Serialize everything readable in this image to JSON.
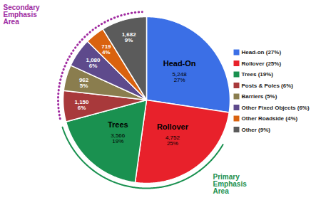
{
  "chart_data": {
    "type": "pie",
    "categories": [
      "Head-on (27%)",
      "Rollover (25%)",
      "Trees (19%)",
      "Posts & Poles (6%)",
      "Barriers (5%)",
      "Other Fixed Objects (6%)",
      "Other Roadside (4%)",
      "Other (9%)"
    ],
    "values": [
      5248,
      4752,
      3566,
      1150,
      962,
      1080,
      719,
      1682
    ],
    "value_labels": [
      "5,248",
      "4,752",
      "3,566",
      "1,150",
      "962",
      "1,080",
      "719",
      "1,682"
    ],
    "percent_labels": [
      "27%",
      "25%",
      "19%",
      "6%",
      "5%",
      "6%",
      "4%",
      "9%"
    ],
    "slice_names": [
      "Head-On",
      "Rollover",
      "Trees",
      null,
      null,
      null,
      null,
      null
    ],
    "colors": [
      "#3b6fe6",
      "#e8212b",
      "#1a9150",
      "#a8393b",
      "#8a7d4e",
      "#5e4a8c",
      "#d9620f",
      "#5b5b5b"
    ],
    "data_labels": true,
    "legend": "right",
    "annotations": [
      {
        "text": "Secondary Emphasis Area",
        "color": "#a02aa0",
        "line_style": "dotted",
        "categories": [
          "Posts & Poles (6%)",
          "Barriers (5%)",
          "Other Fixed Objects (6%)",
          "Other Roadside (4%)",
          "Other (9%)"
        ]
      },
      {
        "text": "Primary Emphasis Area",
        "color": "#1a9150",
        "line_style": "solid",
        "categories": [
          "Head-on (27%)",
          "Rollover (25%)",
          "Trees (19%)"
        ]
      }
    ]
  }
}
